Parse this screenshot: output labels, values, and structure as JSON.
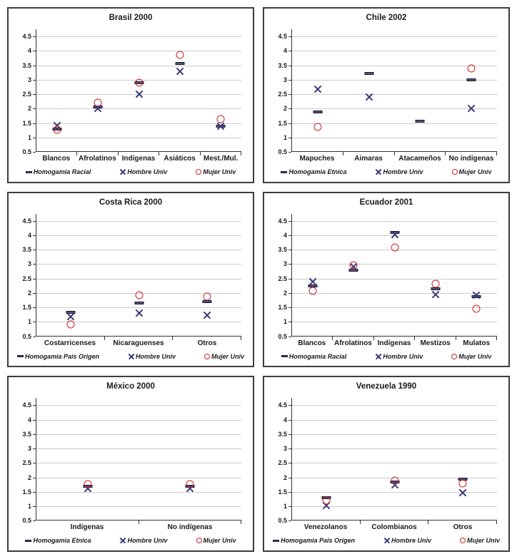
{
  "page": {
    "background": "#ffffff"
  },
  "colors": {
    "panel_border": "#3d3d3d",
    "axis": "#333333",
    "grid": "#cccccc",
    "dash_marker_fill": "#52527a",
    "dash_marker_border": "#18182f",
    "x_marker": "#39397a",
    "o_marker": "#cb2128",
    "text": "#1a1a1a"
  },
  "yticks": [
    "4.5",
    "4",
    "3.5",
    "3",
    "2.5",
    "2",
    "1.5",
    "1",
    "0.5"
  ],
  "chart_data": [
    {
      "type": "scatter",
      "title": "Brasil 2000",
      "categories": [
        "Blancos",
        "Afrolatinos",
        "Indígenas",
        "Asiáticos",
        "Mest./Mul."
      ],
      "ylim": [
        0.5,
        4.5
      ],
      "ytick_step": 0.5,
      "grid": true,
      "legend_position": "bottom",
      "series": [
        {
          "name": "Homogamia Racial",
          "marker": "dash",
          "values": [
            1.28,
            2.05,
            2.9,
            3.55,
            1.4
          ]
        },
        {
          "name": "Hombre Univ",
          "marker": "x",
          "values": [
            1.42,
            2.0,
            2.5,
            3.28,
            1.38
          ]
        },
        {
          "name": "Mujer Univ",
          "marker": "o",
          "values": [
            1.27,
            2.2,
            2.9,
            3.85,
            1.63
          ]
        }
      ]
    },
    {
      "type": "scatter",
      "title": "Chile 2002",
      "categories": [
        "Mapuches",
        "Aimaras",
        "Atacameños",
        "No indígenas"
      ],
      "ylim": [
        0.5,
        4.5
      ],
      "ytick_step": 0.5,
      "grid": true,
      "legend_position": "bottom",
      "series": [
        {
          "name": "Homogamia Etnica",
          "marker": "dash",
          "values": [
            1.88,
            3.22,
            1.57,
            3.0
          ]
        },
        {
          "name": "Hombre Univ",
          "marker": "x",
          "values": [
            2.68,
            2.4,
            null,
            2.0
          ]
        },
        {
          "name": "Mujer Univ",
          "marker": "o",
          "values": [
            1.37,
            null,
            null,
            3.4
          ]
        }
      ]
    },
    {
      "type": "scatter",
      "title": "Costa Rica 2000",
      "categories": [
        "Costarricenses",
        "Nicaraguenses",
        "Otros"
      ],
      "ylim": [
        0.5,
        4.5
      ],
      "ytick_step": 0.5,
      "grid": true,
      "legend_position": "bottom",
      "series": [
        {
          "name": "Homogamia País Origen",
          "marker": "dash",
          "values": [
            1.32,
            1.65,
            1.7
          ]
        },
        {
          "name": "Hombre Univ",
          "marker": "x",
          "values": [
            1.18,
            1.3,
            1.22
          ]
        },
        {
          "name": "Mujer Univ",
          "marker": "o",
          "values": [
            0.9,
            1.93,
            1.87
          ]
        }
      ]
    },
    {
      "type": "scatter",
      "title": "Ecuador 2001",
      "categories": [
        "Blancos",
        "Afrolatinos",
        "Indígenas",
        "Mestizos",
        "Mulatos"
      ],
      "ylim": [
        0.5,
        4.5
      ],
      "ytick_step": 0.5,
      "grid": true,
      "legend_position": "bottom",
      "series": [
        {
          "name": "Homogamia Racial",
          "marker": "dash",
          "values": [
            2.25,
            2.78,
            4.1,
            2.15,
            1.88
          ]
        },
        {
          "name": "Hombre Univ",
          "marker": "x",
          "values": [
            2.4,
            2.9,
            4.02,
            1.95,
            1.93
          ]
        },
        {
          "name": "Mujer Univ",
          "marker": "o",
          "values": [
            2.08,
            2.97,
            3.58,
            2.33,
            1.45
          ]
        }
      ]
    },
    {
      "type": "scatter",
      "title": "México 2000",
      "categories": [
        "Indígenas",
        "No indígenas"
      ],
      "ylim": [
        0.5,
        4.5
      ],
      "ytick_step": 0.5,
      "grid": true,
      "legend_position": "bottom",
      "series": [
        {
          "name": "Homogamia Etnica",
          "marker": "dash",
          "values": [
            1.7,
            1.7
          ]
        },
        {
          "name": "Hombre Univ",
          "marker": "x",
          "values": [
            1.62,
            1.62
          ]
        },
        {
          "name": "Mujer Univ",
          "marker": "o",
          "values": [
            1.76,
            1.76
          ]
        }
      ]
    },
    {
      "type": "scatter",
      "title": "Venezuela 1990",
      "categories": [
        "Venezolanos",
        "Colombianos",
        "Otros"
      ],
      "ylim": [
        0.5,
        4.5
      ],
      "ytick_step": 0.5,
      "grid": true,
      "legend_position": "bottom",
      "series": [
        {
          "name": "Homogamia País Origen",
          "marker": "dash",
          "values": [
            1.3,
            1.85,
            1.95
          ]
        },
        {
          "name": "Hombre Univ",
          "marker": "x",
          "values": [
            1.03,
            1.75,
            1.47
          ]
        },
        {
          "name": "Mujer Univ",
          "marker": "o",
          "values": [
            1.2,
            1.88,
            1.8
          ]
        }
      ]
    }
  ]
}
